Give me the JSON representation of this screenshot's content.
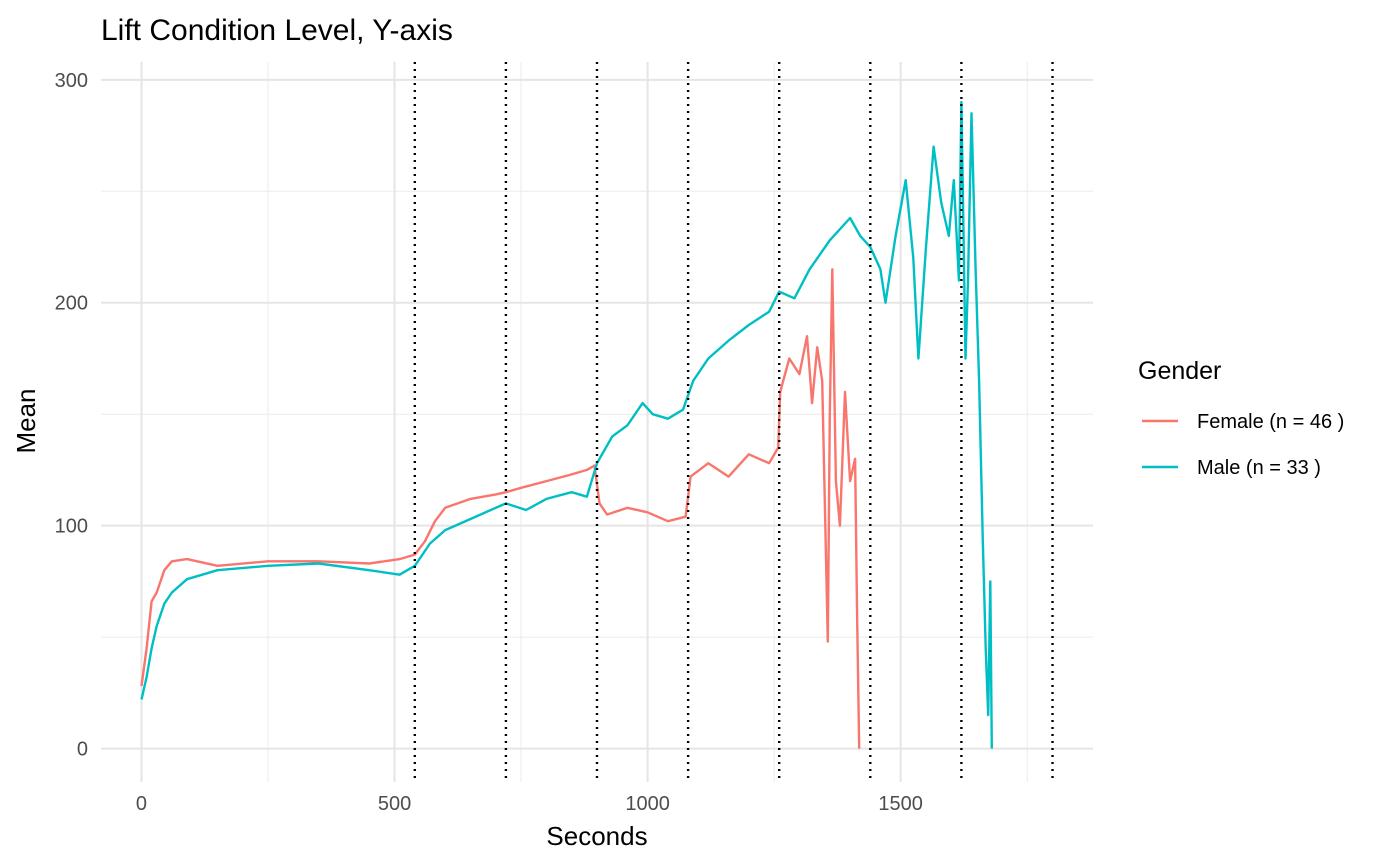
{
  "chart_data": {
    "type": "line",
    "title": "Lift Condition Level, Y-axis",
    "xlabel": "Seconds",
    "ylabel": "Mean",
    "xlim": [
      -80,
      1880
    ],
    "ylim": [
      -15,
      308
    ],
    "x_ticks": [
      0,
      500,
      1000,
      1500
    ],
    "y_ticks": [
      0,
      100,
      200,
      300
    ],
    "x_minor_ticks": [
      250,
      750,
      1250,
      1750
    ],
    "y_minor_ticks": [
      50,
      150,
      250
    ],
    "grid": true,
    "vertical_reference_lines": [
      540,
      720,
      900,
      1080,
      1260,
      1440,
      1620,
      1800
    ],
    "legend": {
      "title": "Gender",
      "position": "right"
    },
    "series": [
      {
        "name": "Female (n = 46 )",
        "color": "#F8766D",
        "points": [
          [
            0,
            28
          ],
          [
            10,
            45
          ],
          [
            20,
            66
          ],
          [
            30,
            70
          ],
          [
            45,
            80
          ],
          [
            60,
            84
          ],
          [
            90,
            85
          ],
          [
            150,
            82
          ],
          [
            250,
            84
          ],
          [
            350,
            84
          ],
          [
            450,
            83
          ],
          [
            510,
            85
          ],
          [
            540,
            87
          ],
          [
            560,
            93
          ],
          [
            580,
            102
          ],
          [
            600,
            108
          ],
          [
            650,
            112
          ],
          [
            700,
            114
          ],
          [
            720,
            115
          ],
          [
            750,
            117
          ],
          [
            800,
            120
          ],
          [
            850,
            123
          ],
          [
            880,
            125
          ],
          [
            895,
            127
          ],
          [
            905,
            110
          ],
          [
            920,
            105
          ],
          [
            960,
            108
          ],
          [
            1000,
            106
          ],
          [
            1040,
            102
          ],
          [
            1075,
            104
          ],
          [
            1085,
            122
          ],
          [
            1120,
            128
          ],
          [
            1160,
            122
          ],
          [
            1200,
            132
          ],
          [
            1240,
            128
          ],
          [
            1258,
            135
          ],
          [
            1262,
            160
          ],
          [
            1280,
            175
          ],
          [
            1300,
            168
          ],
          [
            1315,
            185
          ],
          [
            1325,
            155
          ],
          [
            1335,
            180
          ],
          [
            1345,
            165
          ],
          [
            1352,
            90
          ],
          [
            1356,
            48
          ],
          [
            1360,
            150
          ],
          [
            1365,
            215
          ],
          [
            1372,
            120
          ],
          [
            1380,
            100
          ],
          [
            1390,
            160
          ],
          [
            1400,
            120
          ],
          [
            1410,
            130
          ],
          [
            1414,
            60
          ],
          [
            1418,
            0
          ]
        ]
      },
      {
        "name": "Male (n = 33 )",
        "color": "#00BFC4",
        "points": [
          [
            0,
            22
          ],
          [
            10,
            32
          ],
          [
            20,
            45
          ],
          [
            30,
            55
          ],
          [
            45,
            65
          ],
          [
            60,
            70
          ],
          [
            90,
            76
          ],
          [
            150,
            80
          ],
          [
            250,
            82
          ],
          [
            350,
            83
          ],
          [
            450,
            80
          ],
          [
            510,
            78
          ],
          [
            540,
            82
          ],
          [
            570,
            92
          ],
          [
            600,
            98
          ],
          [
            650,
            103
          ],
          [
            700,
            108
          ],
          [
            720,
            110
          ],
          [
            760,
            107
          ],
          [
            800,
            112
          ],
          [
            850,
            115
          ],
          [
            880,
            113
          ],
          [
            900,
            128
          ],
          [
            930,
            140
          ],
          [
            960,
            145
          ],
          [
            990,
            155
          ],
          [
            1010,
            150
          ],
          [
            1040,
            148
          ],
          [
            1070,
            152
          ],
          [
            1090,
            165
          ],
          [
            1120,
            175
          ],
          [
            1160,
            183
          ],
          [
            1200,
            190
          ],
          [
            1240,
            196
          ],
          [
            1260,
            205
          ],
          [
            1290,
            202
          ],
          [
            1320,
            215
          ],
          [
            1360,
            228
          ],
          [
            1400,
            238
          ],
          [
            1420,
            230
          ],
          [
            1440,
            225
          ],
          [
            1460,
            215
          ],
          [
            1470,
            200
          ],
          [
            1490,
            230
          ],
          [
            1510,
            255
          ],
          [
            1525,
            220
          ],
          [
            1535,
            175
          ],
          [
            1550,
            225
          ],
          [
            1565,
            270
          ],
          [
            1580,
            245
          ],
          [
            1595,
            230
          ],
          [
            1605,
            255
          ],
          [
            1615,
            210
          ],
          [
            1620,
            290
          ],
          [
            1628,
            175
          ],
          [
            1633,
            210
          ],
          [
            1640,
            285
          ],
          [
            1648,
            215
          ],
          [
            1655,
            165
          ],
          [
            1662,
            95
          ],
          [
            1668,
            45
          ],
          [
            1673,
            15
          ],
          [
            1677,
            75
          ],
          [
            1680,
            0
          ]
        ]
      }
    ]
  }
}
